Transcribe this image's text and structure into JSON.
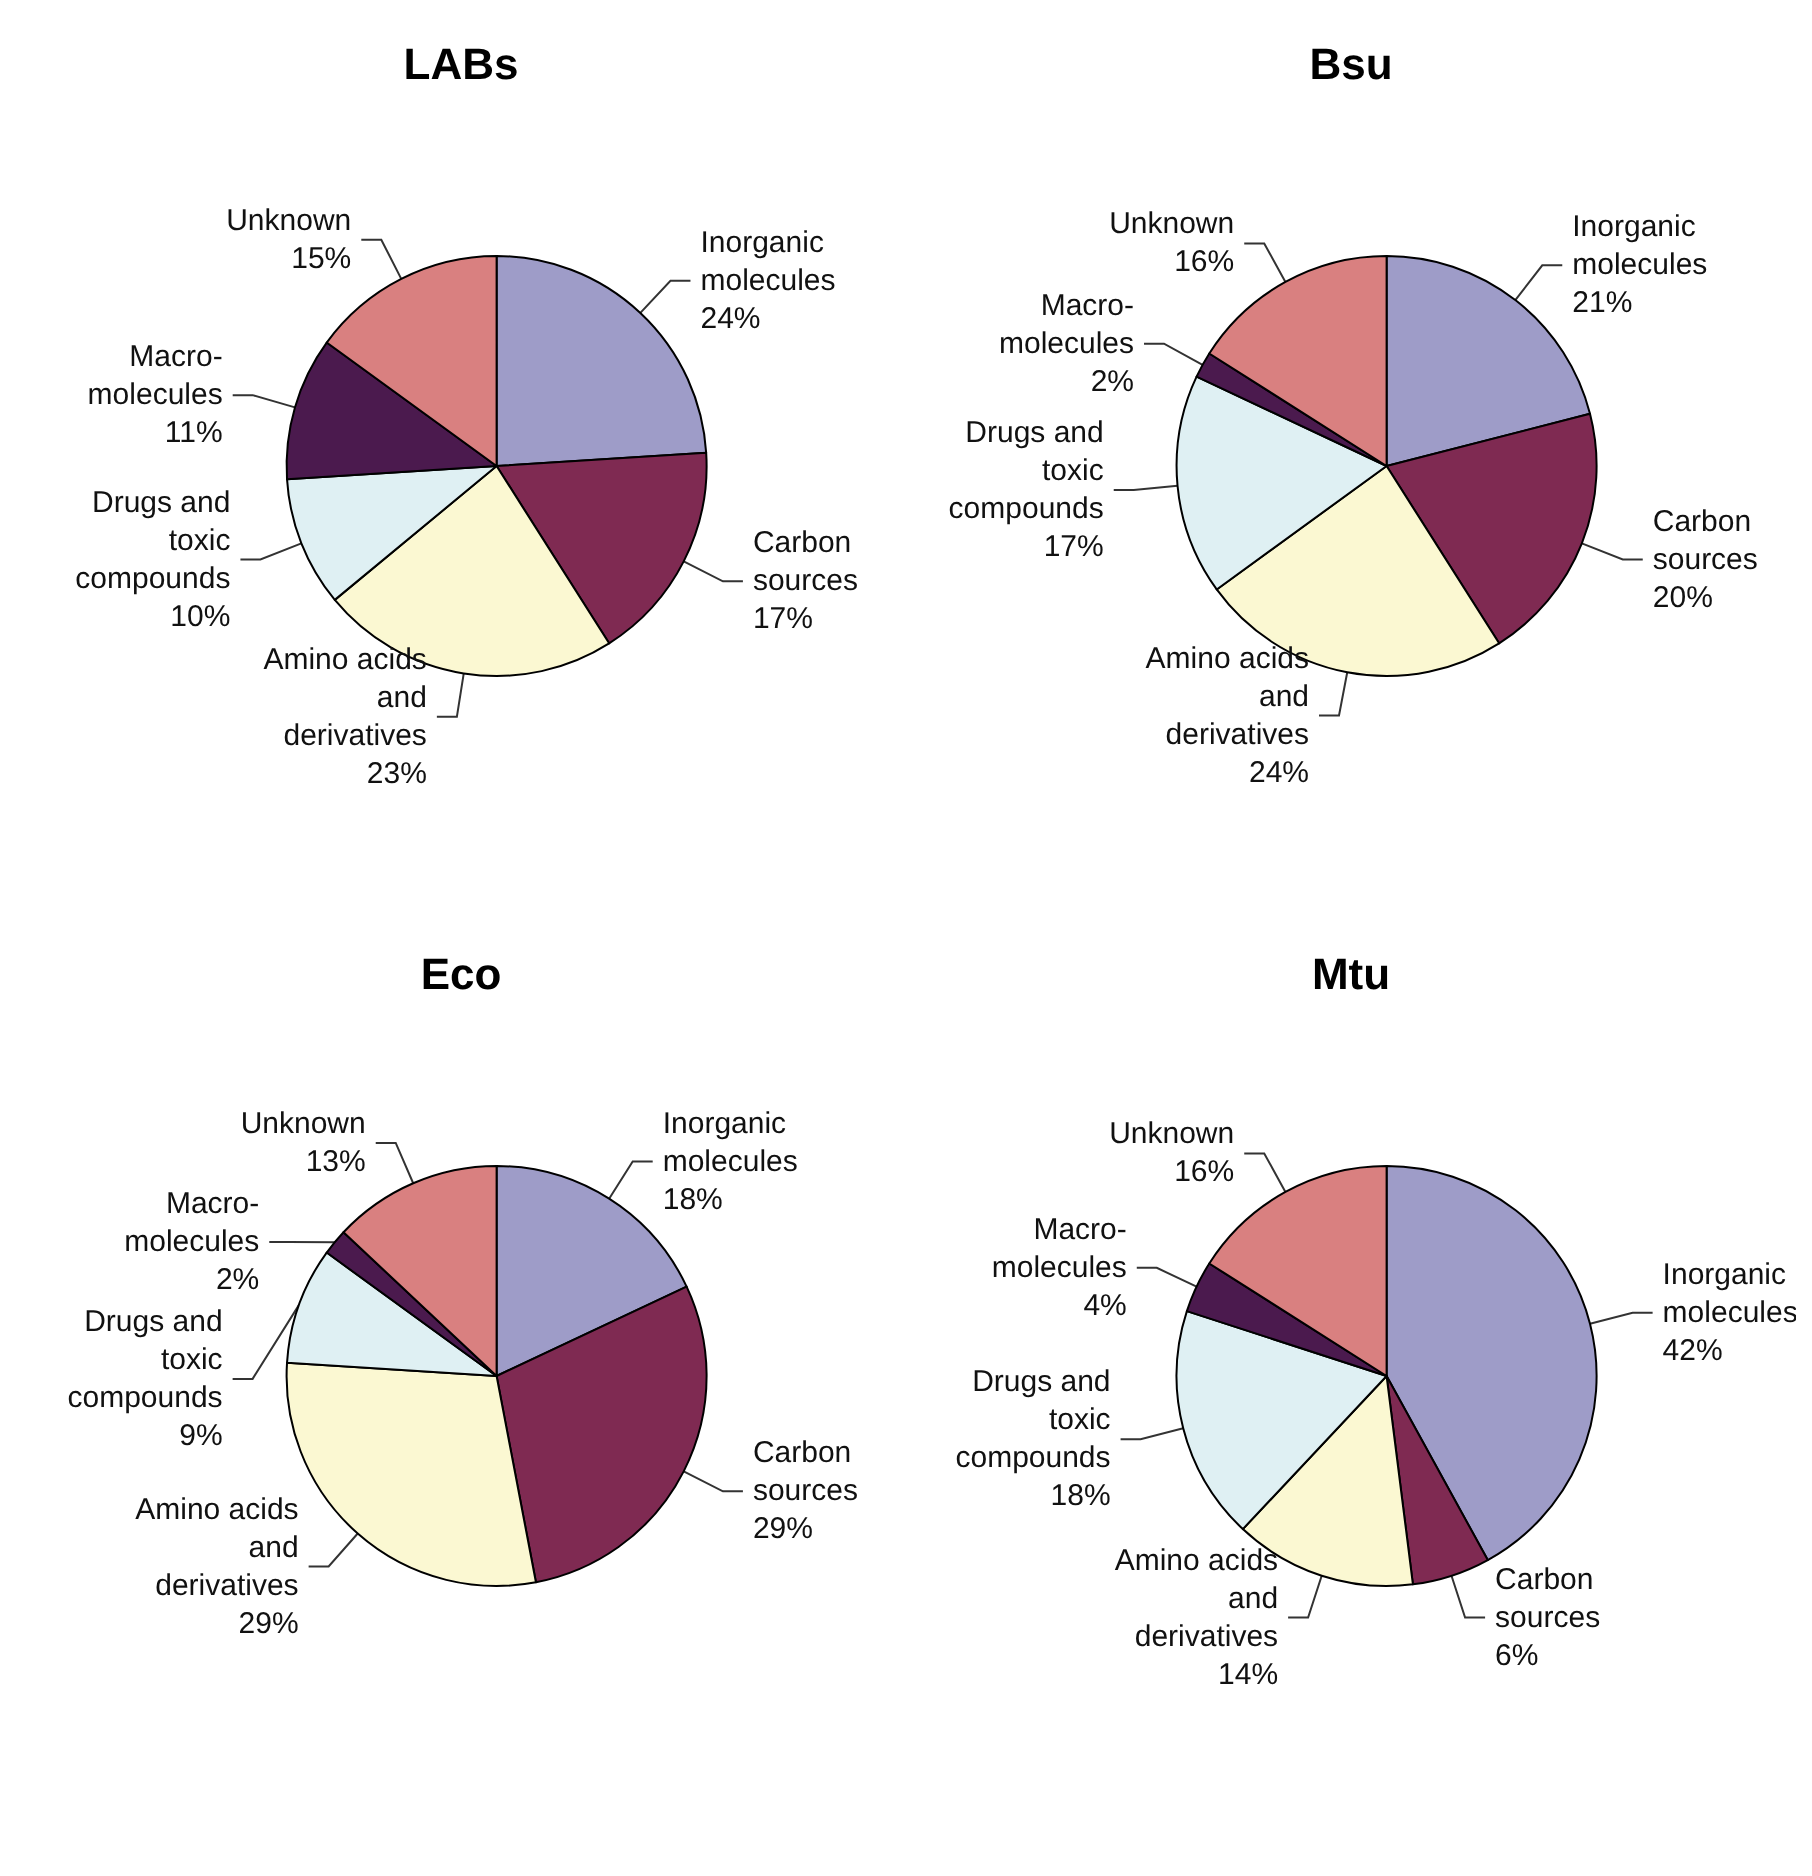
{
  "chart_data": [
    {
      "type": "pie",
      "title": "LABs",
      "categories": [
        "Inorganic\nmolecules",
        "Carbon\nsources",
        "Amino acids\nand\nderivatives",
        "Drugs and\ntoxic\ncompounds",
        "Macro-\nmolecules",
        "Unknown"
      ],
      "values": [
        24,
        17,
        23,
        10,
        11,
        15
      ],
      "value_labels": [
        "24%",
        "17%",
        "23%",
        "10%",
        "11%",
        "15%"
      ],
      "colors": [
        "#9e9cc8",
        "#7f2a52",
        "#fbf8d2",
        "#dff0f3",
        "#4b1a4e",
        "#d98080"
      ]
    },
    {
      "type": "pie",
      "title": "Bsu",
      "categories": [
        "Inorganic\nmolecules",
        "Carbon\nsources",
        "Amino acids\nand\nderivatives",
        "Drugs and\ntoxic\ncompounds",
        "Macro-\nmolecules",
        "Unknown"
      ],
      "values": [
        21,
        20,
        24,
        17,
        2,
        16
      ],
      "value_labels": [
        "21%",
        "20%",
        "24%",
        "17%",
        "2%",
        "16%"
      ],
      "colors": [
        "#9e9cc8",
        "#7f2a52",
        "#fbf8d2",
        "#dff0f3",
        "#4b1a4e",
        "#d98080"
      ]
    },
    {
      "type": "pie",
      "title": "Eco",
      "categories": [
        "Inorganic\nmolecules",
        "Carbon\nsources",
        "Amino acids\nand\nderivatives",
        "Drugs and\ntoxic\ncompounds",
        "Macro-\nmolecules",
        "Unknown"
      ],
      "values": [
        18,
        29,
        29,
        9,
        2,
        13
      ],
      "value_labels": [
        "18%",
        "29%",
        "29%",
        "9%",
        "2%",
        "13%"
      ],
      "colors": [
        "#9e9cc8",
        "#7f2a52",
        "#fbf8d2",
        "#dff0f3",
        "#4b1a4e",
        "#d98080"
      ]
    },
    {
      "type": "pie",
      "title": "Mtu",
      "categories": [
        "Inorganic\nmolecules",
        "Carbon\nsources",
        "Amino acids\nand\nderivatives",
        "Drugs and\ntoxic\ncompounds",
        "Macro-\nmolecules",
        "Unknown"
      ],
      "values": [
        42,
        6,
        14,
        18,
        4,
        16
      ],
      "value_labels": [
        "42%",
        "6%",
        "14%",
        "18%",
        "4%",
        "16%"
      ],
      "colors": [
        "#9e9cc8",
        "#7f2a52",
        "#fbf8d2",
        "#dff0f3",
        "#4b1a4e",
        "#d98080"
      ]
    }
  ]
}
